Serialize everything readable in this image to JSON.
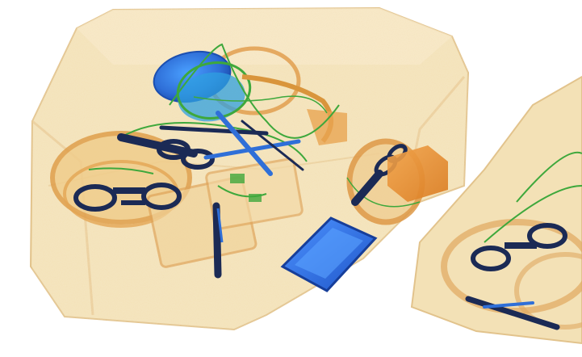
{
  "image": {
    "kind": "xray-baggage-scan",
    "items": [
      "bag",
      "second-bag-partial",
      "scissors",
      "scissors",
      "scissors",
      "knife",
      "knife",
      "blue-cup",
      "blue-tray",
      "orange-box",
      "round-container",
      "wire",
      "wire"
    ],
    "palette": {
      "background": "#ffffff",
      "organic": "#f1ddb0",
      "organic_edge": "#e0b678",
      "inorganic": "#d9953c",
      "metal_blue": "#2f6fd8",
      "metal_dark": "#1b2a55",
      "wire_green": "#3ea83c"
    }
  }
}
